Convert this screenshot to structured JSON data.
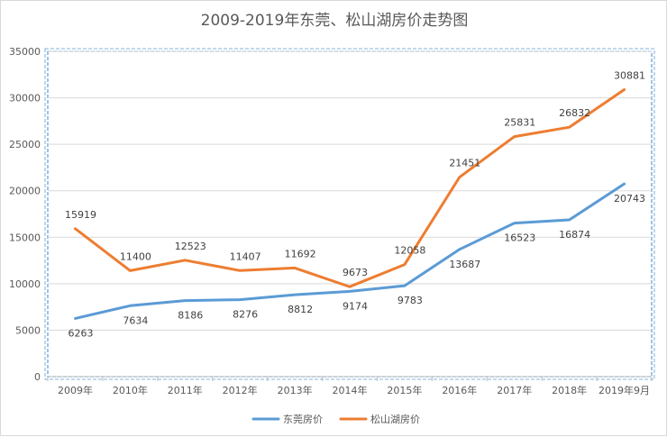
{
  "chart_data": {
    "type": "line",
    "title": "2009-2019年东莞、松山湖房价走势图",
    "xlabel": "",
    "ylabel": "",
    "ylim": [
      0,
      35000
    ],
    "y_ticks": [
      0,
      5000,
      10000,
      15000,
      20000,
      25000,
      30000,
      35000
    ],
    "categories": [
      "2009年",
      "2010年",
      "2011年",
      "2012年",
      "2013年",
      "2014年",
      "2015年",
      "2016年",
      "2017年",
      "2018年",
      "2019年9月"
    ],
    "grid": true,
    "legend_position": "bottom",
    "series": [
      {
        "name": "东莞房价",
        "color": "#5b9bd5",
        "values": [
          6263,
          7634,
          8186,
          8276,
          8812,
          9174,
          9783,
          13687,
          16523,
          16874,
          20743
        ]
      },
      {
        "name": "松山湖房价",
        "color": "#ed7d31",
        "values": [
          15919,
          11400,
          12523,
          11407,
          11692,
          9673,
          12058,
          21451,
          25831,
          26832,
          30881
        ]
      }
    ]
  }
}
